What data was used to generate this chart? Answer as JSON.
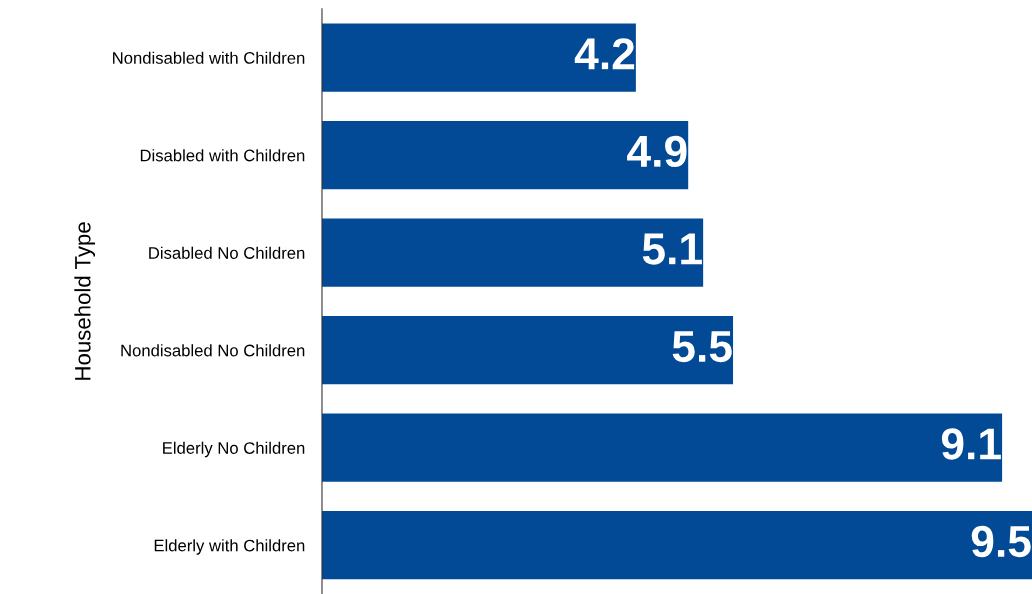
{
  "chart_data": {
    "type": "bar",
    "orientation": "horizontal",
    "ylabel": "Household Type",
    "categories": [
      "Nondisabled with Children",
      "Disabled with Children",
      "Disabled No Children",
      "Nondisabled No Children",
      "Elderly No Children",
      "Elderly with Children"
    ],
    "values": [
      4.2,
      4.9,
      5.1,
      5.5,
      9.1,
      9.5
    ],
    "color": "#034a96",
    "data_labels": true,
    "grid": false,
    "legend": false
  }
}
